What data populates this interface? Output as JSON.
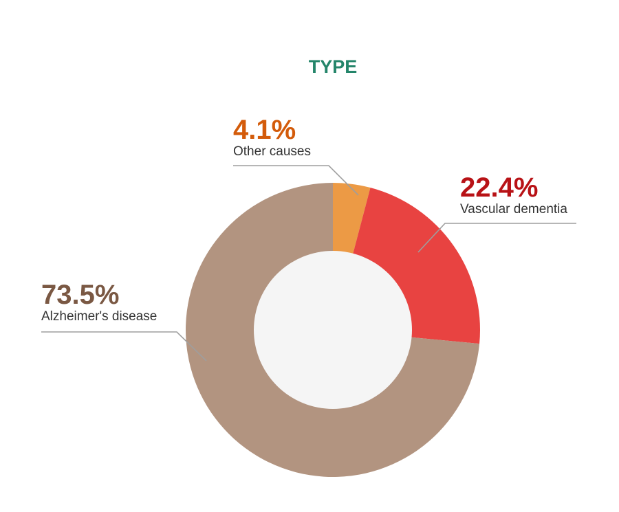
{
  "chart_data": {
    "type": "pie",
    "title": "TYPE",
    "donut": true,
    "legend": "none",
    "slices": [
      {
        "label": "Other causes",
        "pct_text": "4.1%",
        "value": 4.1,
        "color": "#ec9a45",
        "label_color": "#d35b0a"
      },
      {
        "label": "Vascular dementia",
        "pct_text": "22.4%",
        "value": 22.4,
        "color": "#e84341",
        "label_color": "#b81216"
      },
      {
        "label": "Alzheimer's disease",
        "pct_text": "73.5%",
        "value": 73.5,
        "color": "#b29480",
        "label_color": "#7a5843"
      }
    ]
  },
  "colors": {
    "title": "#24856a",
    "hole": "#f5f5f5",
    "leader": "#9e9e9e"
  }
}
